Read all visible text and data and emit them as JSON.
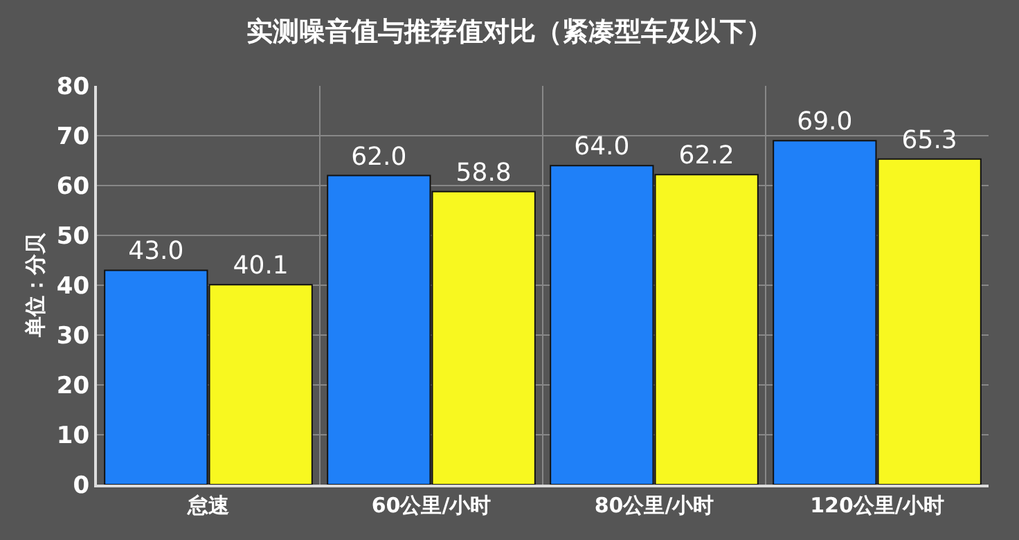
{
  "chart_data": {
    "type": "bar",
    "title": "实测噪音值与推荐值对比（紧凑型车及以下）",
    "ylabel": "单位：分贝",
    "categories": [
      "怠速",
      "60公里/小时",
      "80公里/小时",
      "120公里/小时"
    ],
    "series": [
      {
        "color": "#1f80f8",
        "values": [
          43.0,
          62.0,
          64.0,
          69.0
        ],
        "value_labels": [
          "43.0",
          "62.0",
          "64.0",
          "69.0"
        ]
      },
      {
        "color": "#f8f820",
        "values": [
          40.1,
          58.8,
          62.2,
          65.3
        ],
        "value_labels": [
          "40.1",
          "58.8",
          "62.2",
          "65.3"
        ]
      }
    ],
    "ylim": [
      0,
      80
    ],
    "yticks": [
      0,
      10,
      20,
      30,
      40,
      50,
      60,
      70,
      80
    ],
    "grid": true
  }
}
